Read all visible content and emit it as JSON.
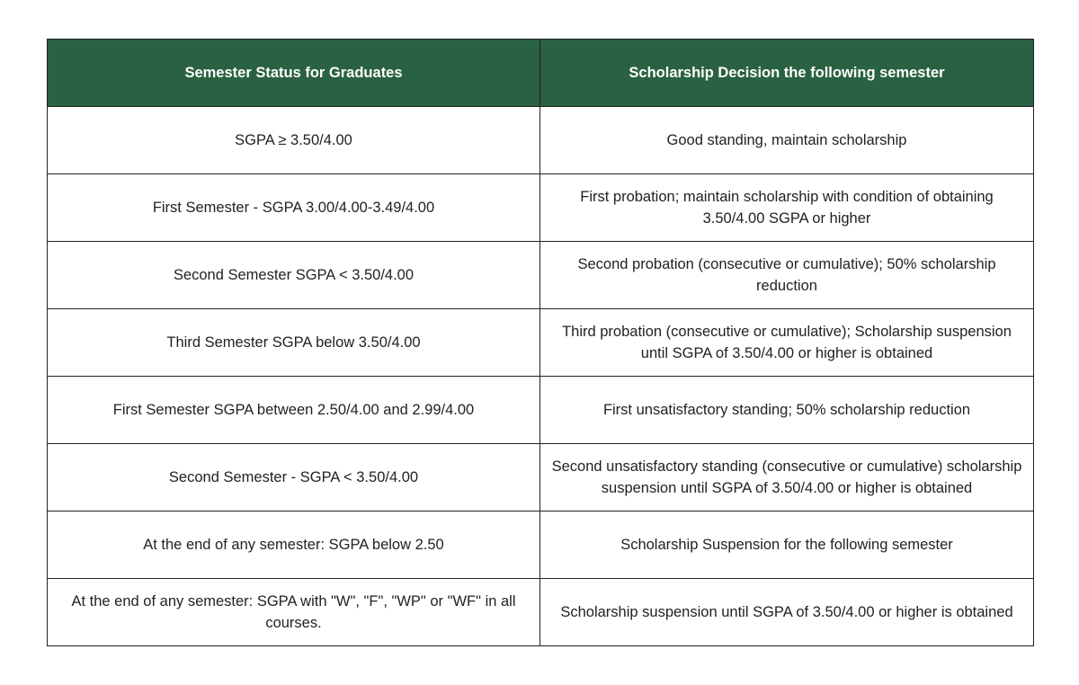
{
  "table": {
    "header": [
      "Semester Status for Graduates",
      "Scholarship Decision the following semester"
    ],
    "rows": [
      [
        "SGPA ≥ 3.50/4.00",
        "Good standing, maintain scholarship"
      ],
      [
        "First Semester - SGPA 3.00/4.00-3.49/4.00",
        "First probation; maintain scholarship with condition of obtaining 3.50/4.00 SGPA or higher"
      ],
      [
        "Second Semester SGPA < 3.50/4.00",
        "Second probation (consecutive or cumulative); 50% scholarship reduction"
      ],
      [
        "Third Semester SGPA below 3.50/4.00",
        "Third probation (consecutive or cumulative); Scholarship suspension until SGPA of 3.50/4.00 or higher is obtained"
      ],
      [
        "First Semester SGPA between 2.50/4.00 and 2.99/4.00",
        "First unsatisfactory standing; 50% scholarship reduction"
      ],
      [
        "Second Semester - SGPA < 3.50/4.00",
        "Second unsatisfactory standing (consecutive or cumulative) scholarship suspension until SGPA of 3.50/4.00 or higher is obtained"
      ],
      [
        "At the end of any semester: SGPA below 2.50",
        "Scholarship Suspension for the following semester"
      ],
      [
        "At the end of any semester: SGPA with \"W\", \"F\", \"WP\" or \"WF\" in all courses.",
        "Scholarship suspension until SGPA of 3.50/4.00 or higher is obtained"
      ]
    ]
  }
}
